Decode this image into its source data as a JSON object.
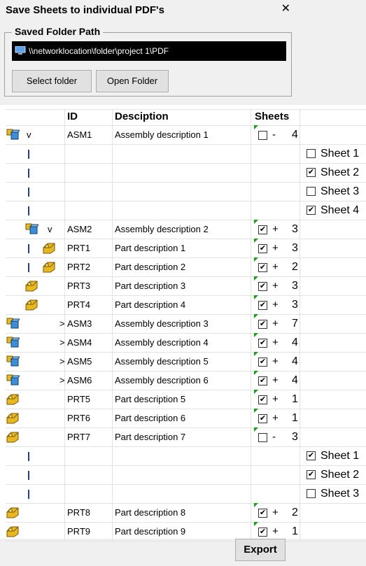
{
  "window": {
    "title": "Save Sheets to individual PDF's",
    "close_glyph": "✕"
  },
  "folder_group": {
    "legend": "Saved Folder Path",
    "path": "\\\\networklocation\\folder\\project 1\\PDF",
    "select_button": "Select folder",
    "open_button": "Open Folder"
  },
  "table": {
    "headers": {
      "id": "ID",
      "description": "Desciption",
      "sheets": "Sheets"
    }
  },
  "rows": [
    {
      "type": "asm",
      "indent": 0,
      "expander": "v",
      "id": "ASM1",
      "description": "Assembly description 1",
      "checked": false,
      "sign": "-",
      "count": "4"
    },
    {
      "type": "sheet",
      "label": "Sheet 1",
      "checked": false
    },
    {
      "type": "sheet",
      "label": "Sheet 2",
      "checked": true
    },
    {
      "type": "sheet",
      "label": "Sheet 3",
      "checked": false
    },
    {
      "type": "sheet",
      "label": "Sheet 4",
      "checked": true
    },
    {
      "type": "asm",
      "indent": 1,
      "expander": "v",
      "id": "ASM2",
      "description": "Assembly description 2",
      "checked": true,
      "sign": "+",
      "count": "3"
    },
    {
      "type": "prt",
      "indent": 2,
      "expander": "",
      "id": "PRT1",
      "description": "Part description 1",
      "checked": true,
      "sign": "+",
      "count": "3"
    },
    {
      "type": "prt",
      "indent": 2,
      "expander": "",
      "id": "PRT2",
      "description": "Part description 2",
      "checked": true,
      "sign": "+",
      "count": "2"
    },
    {
      "type": "prt",
      "indent": 1,
      "expander": "",
      "id": "PRT3",
      "description": "Part description 3",
      "checked": true,
      "sign": "+",
      "count": "3"
    },
    {
      "type": "prt",
      "indent": 1,
      "expander": "",
      "id": "PRT4",
      "description": "Part description 4",
      "checked": true,
      "sign": "+",
      "count": "3"
    },
    {
      "type": "asm",
      "indent": 0,
      "expander": ">",
      "id": "ASM3",
      "description": "Assembly description 3",
      "checked": true,
      "sign": "+",
      "count": "7"
    },
    {
      "type": "asm",
      "indent": 0,
      "expander": ">",
      "id": "ASM4",
      "description": "Assembly description 4",
      "checked": true,
      "sign": "+",
      "count": "4"
    },
    {
      "type": "asm",
      "indent": 0,
      "expander": ">",
      "id": "ASM5",
      "description": "Assembly description 5",
      "checked": true,
      "sign": "+",
      "count": "4"
    },
    {
      "type": "asm",
      "indent": 0,
      "expander": ">",
      "id": "ASM6",
      "description": "Assembly description 6",
      "checked": true,
      "sign": "+",
      "count": "4"
    },
    {
      "type": "prt",
      "indent": 0,
      "expander": "",
      "id": "PRT5",
      "description": "Part description 5",
      "checked": true,
      "sign": "+",
      "count": "1"
    },
    {
      "type": "prt",
      "indent": 0,
      "expander": "",
      "id": "PRT6",
      "description": "Part description 6",
      "checked": true,
      "sign": "+",
      "count": "1"
    },
    {
      "type": "prt",
      "indent": 0,
      "expander": "",
      "id": "PRT7",
      "description": "Part description 7",
      "checked": false,
      "sign": "-",
      "count": "3"
    },
    {
      "type": "sheet",
      "label": "Sheet 1",
      "checked": true
    },
    {
      "type": "sheet",
      "label": "Sheet 2",
      "checked": true
    },
    {
      "type": "sheet",
      "label": "Sheet 3",
      "checked": false
    },
    {
      "type": "prt",
      "indent": 0,
      "expander": "",
      "id": "PRT8",
      "description": "Part description 8",
      "checked": true,
      "sign": "+",
      "count": "2"
    },
    {
      "type": "prt",
      "indent": 0,
      "expander": "",
      "id": "PRT9",
      "description": "Part description 9",
      "checked": true,
      "sign": "+",
      "count": "1"
    }
  ],
  "export_button": "Export",
  "colors": {
    "accent_corner": "#16a016",
    "asm_icon": "#3a8fd8",
    "part_icon": "#e8b820",
    "tree_line": "#1f3f8f"
  },
  "icons": {
    "assembly": "assembly-icon",
    "part": "part-icon",
    "computer": "computer-icon"
  }
}
